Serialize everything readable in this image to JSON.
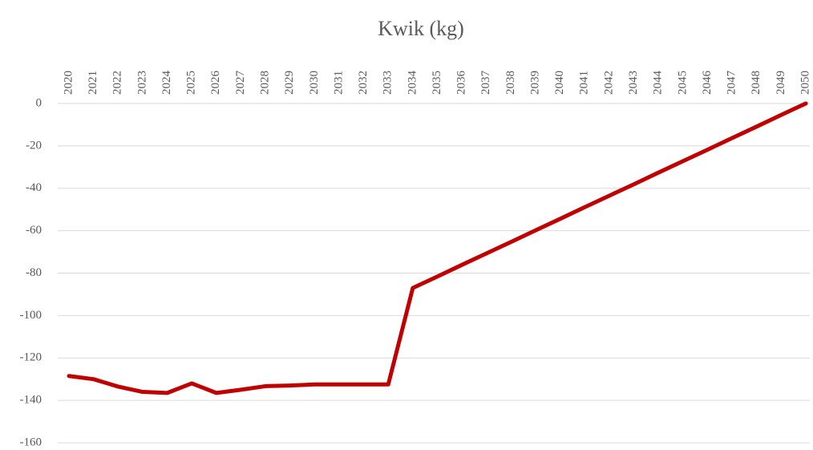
{
  "chart_data": {
    "type": "line",
    "title": "Kwik (kg)",
    "categories": [
      "2020",
      "2021",
      "2022",
      "2023",
      "2024",
      "2025",
      "2026",
      "2027",
      "2028",
      "2029",
      "2030",
      "2031",
      "2032",
      "2033",
      "2034",
      "2035",
      "2036",
      "2037",
      "2038",
      "2039",
      "2040",
      "2041",
      "2042",
      "2043",
      "2044",
      "2045",
      "2046",
      "2047",
      "2048",
      "2049",
      "2050"
    ],
    "series": [
      {
        "name": "Kwik",
        "color": "#c00000",
        "values": [
          -128.5,
          -130,
          -133.5,
          -136,
          -136.5,
          -132,
          -136.5,
          -135,
          -133.3,
          -133,
          -132.5,
          -132.5,
          -132.5,
          -132.5,
          -87,
          -81.6,
          -76.1,
          -70.7,
          -65.3,
          -59.8,
          -54.4,
          -48.9,
          -43.5,
          -38.1,
          -32.6,
          -27.2,
          -21.8,
          -16.3,
          -10.9,
          -5.4,
          0
        ]
      }
    ],
    "ylim": [
      -160,
      0
    ],
    "yticks": [
      0,
      -20,
      -40,
      -60,
      -80,
      -100,
      -120,
      -140,
      -160
    ],
    "grid": true
  }
}
